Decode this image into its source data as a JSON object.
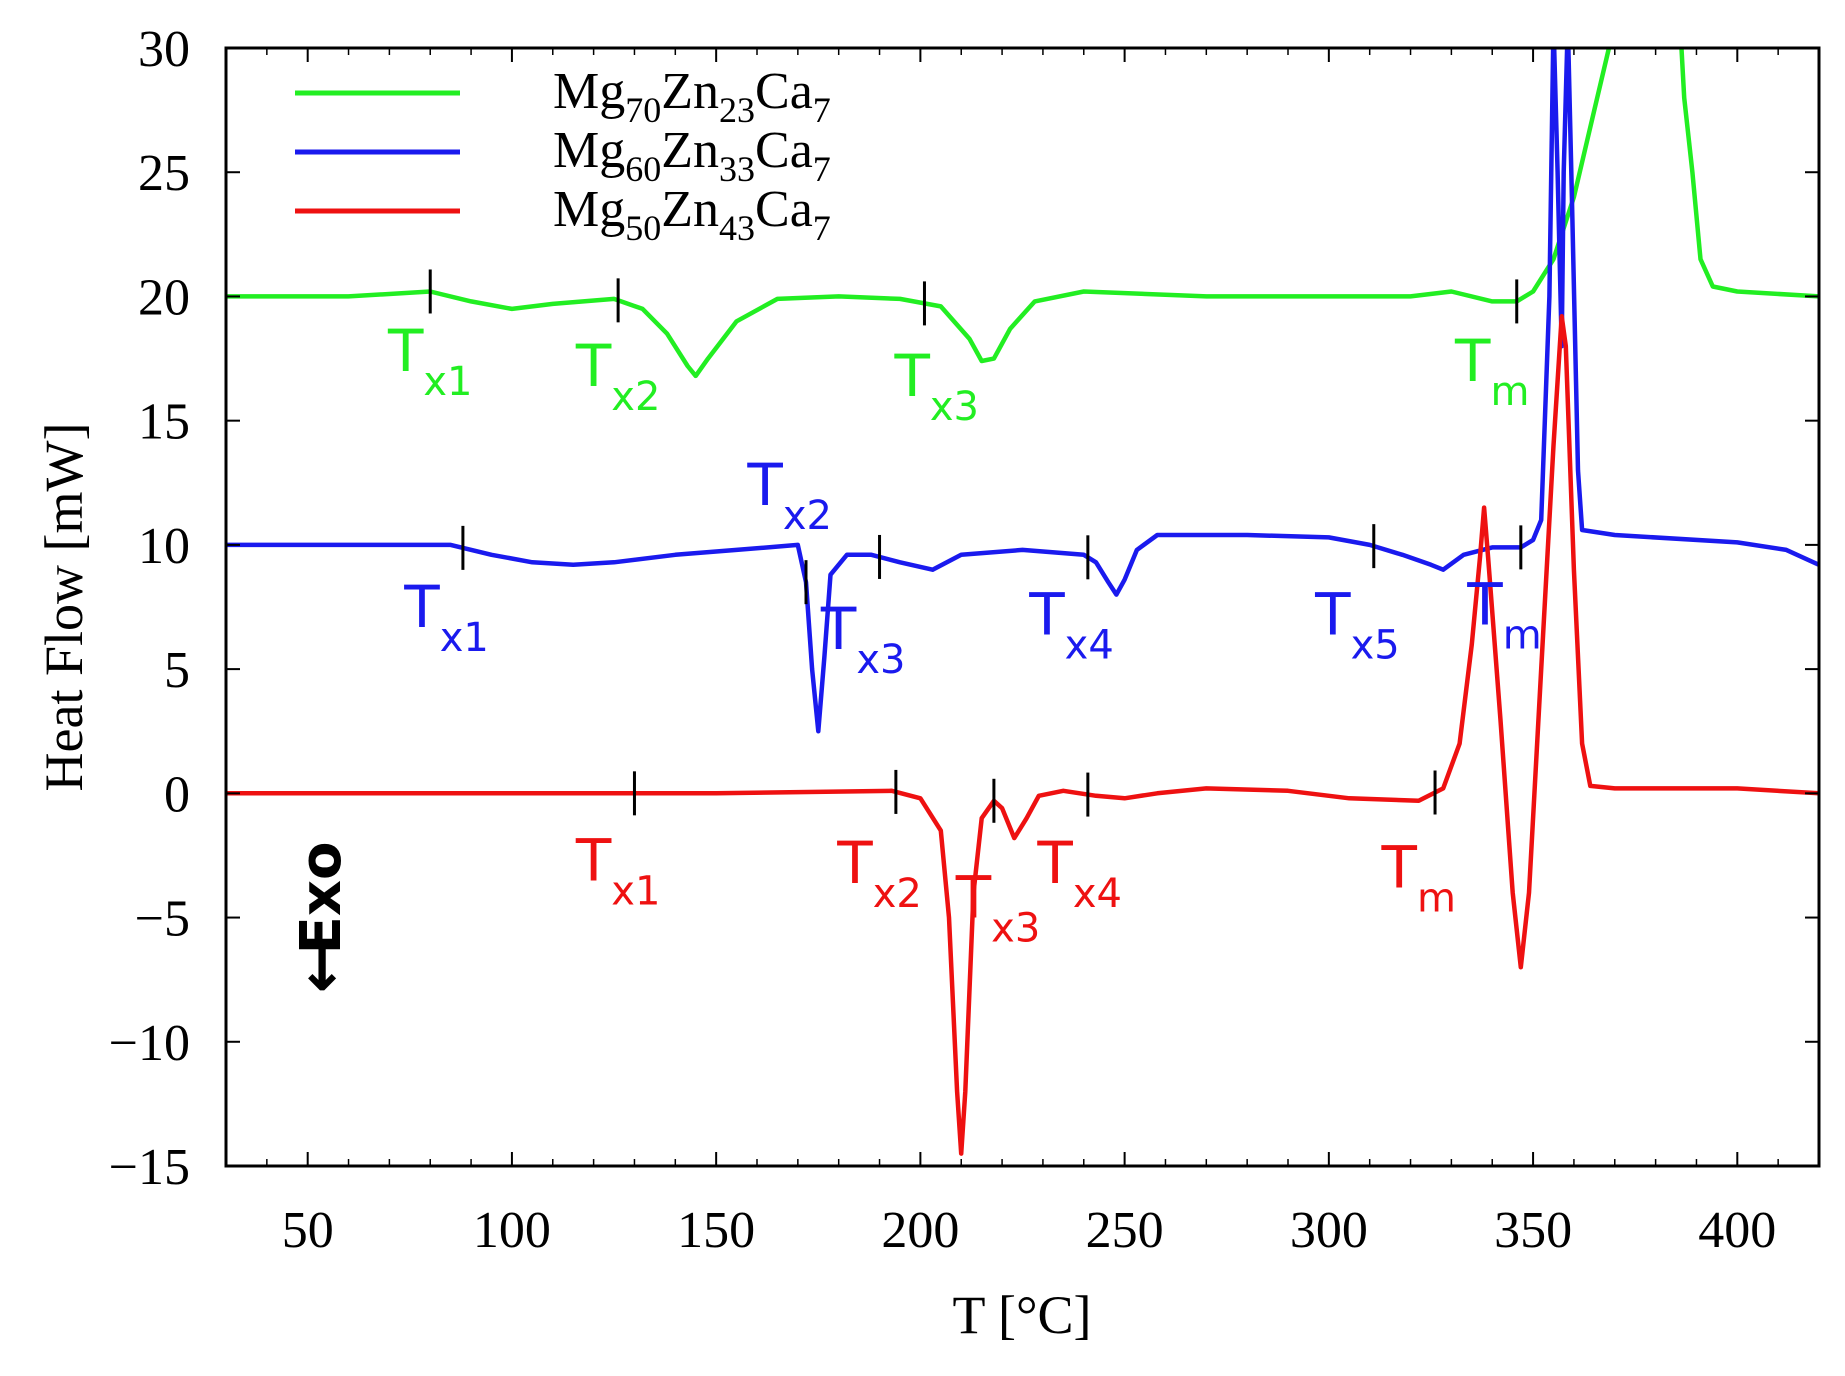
{
  "chart_data": {
    "type": "line",
    "title": "",
    "xlabel": "T [°C]",
    "ylabel": "Heat Flow [mW]",
    "xlim": [
      30,
      420
    ],
    "ylim": [
      -15,
      30
    ],
    "xticks": [
      50,
      100,
      150,
      200,
      250,
      300,
      350,
      400
    ],
    "yticks": [
      30,
      25,
      20,
      15,
      10,
      5,
      0,
      -5,
      -10,
      -15
    ],
    "xtick_labels": [
      "50",
      "100",
      "150",
      "200",
      "250",
      "300",
      "350",
      "400"
    ],
    "ytick_labels": [
      "30",
      "25",
      "20",
      "15",
      "10",
      "5",
      "0",
      "−5",
      "−10",
      "−15"
    ],
    "grid": false,
    "legend_position": "top-left",
    "exo_label": "Exo",
    "exo_arrow": "↓",
    "series": [
      {
        "name": "Mg70Zn23Ca7",
        "legend": {
          "base": "Mg",
          "s1": "70",
          "m1": "Zn",
          "s2": "23",
          "m2": "Ca",
          "s3": "7"
        },
        "color": "#22ee22",
        "points": [
          [
            30,
            20.0
          ],
          [
            60,
            20.0
          ],
          [
            80,
            20.2
          ],
          [
            90,
            19.8
          ],
          [
            100,
            19.5
          ],
          [
            110,
            19.7
          ],
          [
            125,
            19.9
          ],
          [
            132,
            19.5
          ],
          [
            138,
            18.5
          ],
          [
            143,
            17.2
          ],
          [
            145,
            16.8
          ],
          [
            148,
            17.5
          ],
          [
            155,
            19.0
          ],
          [
            165,
            19.9
          ],
          [
            180,
            20.0
          ],
          [
            195,
            19.9
          ],
          [
            205,
            19.6
          ],
          [
            212,
            18.3
          ],
          [
            215,
            17.4
          ],
          [
            218,
            17.5
          ],
          [
            222,
            18.7
          ],
          [
            228,
            19.8
          ],
          [
            240,
            20.2
          ],
          [
            270,
            20.0
          ],
          [
            300,
            20.0
          ],
          [
            320,
            20.0
          ],
          [
            330,
            20.2
          ],
          [
            340,
            19.8
          ],
          [
            346,
            19.8
          ],
          [
            350,
            20.2
          ],
          [
            355,
            21.5
          ],
          [
            360,
            24.0
          ],
          [
            365,
            27.5
          ],
          [
            370,
            31.0
          ],
          [
            386,
            31.0
          ],
          [
            387,
            28.0
          ],
          [
            389,
            25.0
          ],
          [
            391,
            21.5
          ],
          [
            394,
            20.4
          ],
          [
            400,
            20.2
          ],
          [
            420,
            20.0
          ]
        ],
        "annotations": [
          {
            "x": 80,
            "sub": "x1",
            "label_x": 80,
            "label_y": 17.0
          },
          {
            "x": 126,
            "sub": "x2",
            "label_x": 126,
            "label_y": 16.4
          },
          {
            "x": 201,
            "sub": "x3",
            "label_x": 204,
            "label_y": 16.0
          },
          {
            "x": 346,
            "sub": "m",
            "label_x": 340,
            "label_y": 16.6
          }
        ]
      },
      {
        "name": "Mg60Zn33Ca7",
        "legend": {
          "base": "Mg",
          "s1": "60",
          "m1": "Zn",
          "s2": "33",
          "m2": "Ca",
          "s3": "7"
        },
        "color": "#1a1aee",
        "points": [
          [
            30,
            10.0
          ],
          [
            60,
            10.0
          ],
          [
            85,
            10.0
          ],
          [
            95,
            9.6
          ],
          [
            105,
            9.3
          ],
          [
            115,
            9.2
          ],
          [
            125,
            9.3
          ],
          [
            140,
            9.6
          ],
          [
            155,
            9.8
          ],
          [
            170,
            10.0
          ],
          [
            172,
            8.5
          ],
          [
            173.5,
            5.0
          ],
          [
            175,
            2.5
          ],
          [
            176.5,
            5.5
          ],
          [
            178,
            8.8
          ],
          [
            182,
            9.6
          ],
          [
            188,
            9.6
          ],
          [
            195,
            9.3
          ],
          [
            203,
            9.0
          ],
          [
            210,
            9.6
          ],
          [
            225,
            9.8
          ],
          [
            240,
            9.6
          ],
          [
            243,
            9.3
          ],
          [
            246,
            8.5
          ],
          [
            248,
            8.0
          ],
          [
            250,
            8.6
          ],
          [
            253,
            9.8
          ],
          [
            258,
            10.4
          ],
          [
            280,
            10.4
          ],
          [
            300,
            10.3
          ],
          [
            310,
            10.0
          ],
          [
            318,
            9.6
          ],
          [
            325,
            9.2
          ],
          [
            328,
            9.0
          ],
          [
            333,
            9.6
          ],
          [
            340,
            9.9
          ],
          [
            347,
            9.9
          ],
          [
            350,
            10.2
          ],
          [
            352,
            11.0
          ],
          [
            354,
            20.0
          ],
          [
            355,
            31.0
          ],
          [
            356,
            25.0
          ],
          [
            357,
            18.0
          ],
          [
            357.5,
            25.0
          ],
          [
            358.5,
            31.0
          ],
          [
            359.5,
            24.0
          ],
          [
            361,
            13.0
          ],
          [
            362,
            10.6
          ],
          [
            370,
            10.4
          ],
          [
            400,
            10.1
          ],
          [
            412,
            9.8
          ],
          [
            420,
            9.2
          ]
        ],
        "annotations": [
          {
            "x": 88,
            "sub": "x1",
            "label_x": 84,
            "label_y": 6.7
          },
          {
            "x": 172,
            "sub": "x2",
            "label_x": 168,
            "label_y": 11.6
          },
          {
            "x": 190,
            "sub": "x3",
            "label_x": 186,
            "label_y": 5.8
          },
          {
            "x": 241,
            "sub": "x4",
            "label_x": 237,
            "label_y": 6.4
          },
          {
            "x": 311,
            "sub": "x5",
            "label_x": 307,
            "label_y": 6.4
          },
          {
            "x": 347,
            "sub": "m",
            "label_x": 343,
            "label_y": 6.8
          }
        ]
      },
      {
        "name": "Mg50Zn43Ca7",
        "legend": {
          "base": "Mg",
          "s1": "50",
          "m1": "Zn",
          "s2": "43",
          "m2": "Ca",
          "s3": "7"
        },
        "color": "#ee1111",
        "points": [
          [
            30,
            0.0
          ],
          [
            100,
            0.0
          ],
          [
            150,
            0.0
          ],
          [
            193,
            0.1
          ],
          [
            200,
            -0.2
          ],
          [
            205,
            -1.5
          ],
          [
            207,
            -5.0
          ],
          [
            209,
            -12.0
          ],
          [
            210,
            -14.5
          ],
          [
            211,
            -12.0
          ],
          [
            213,
            -4.0
          ],
          [
            215,
            -1.0
          ],
          [
            218,
            -0.3
          ],
          [
            220,
            -0.6
          ],
          [
            223,
            -1.8
          ],
          [
            226,
            -1.0
          ],
          [
            229,
            -0.1
          ],
          [
            235,
            0.1
          ],
          [
            243,
            -0.1
          ],
          [
            250,
            -0.2
          ],
          [
            258,
            0.0
          ],
          [
            270,
            0.2
          ],
          [
            290,
            0.1
          ],
          [
            305,
            -0.2
          ],
          [
            322,
            -0.3
          ],
          [
            328,
            0.2
          ],
          [
            332,
            2.0
          ],
          [
            335,
            6.0
          ],
          [
            337,
            9.5
          ],
          [
            338,
            11.5
          ],
          [
            339,
            9.5
          ],
          [
            342,
            3.0
          ],
          [
            345,
            -4.0
          ],
          [
            347,
            -7.0
          ],
          [
            349,
            -4.0
          ],
          [
            352,
            5.0
          ],
          [
            355,
            14.0
          ],
          [
            357,
            19.2
          ],
          [
            358,
            18.0
          ],
          [
            360,
            9.0
          ],
          [
            362,
            2.0
          ],
          [
            364,
            0.3
          ],
          [
            370,
            0.2
          ],
          [
            400,
            0.2
          ],
          [
            420,
            0.0
          ]
        ],
        "annotations": [
          {
            "x": 130,
            "sub": "x1",
            "label_x": 126,
            "label_y": -3.5
          },
          {
            "x": 194,
            "sub": "x2",
            "label_x": 190,
            "label_y": -3.6
          },
          {
            "x": 218,
            "sub": "x3",
            "label_x": 219,
            "label_y": -5.0
          },
          {
            "x": 241,
            "sub": "x4",
            "label_x": 239,
            "label_y": -3.6
          },
          {
            "x": 326,
            "sub": "m",
            "label_x": 322,
            "label_y": -3.8
          }
        ]
      }
    ]
  }
}
